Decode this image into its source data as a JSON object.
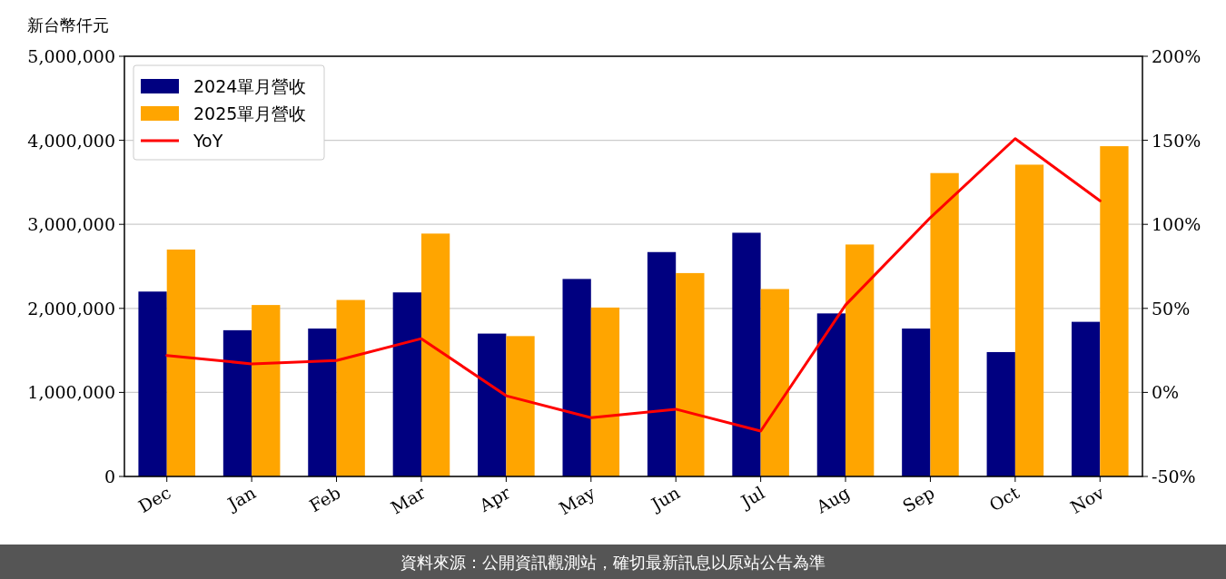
{
  "chart_data": {
    "type": "bar",
    "ylabel": "新台幣仟元",
    "categories": [
      "Dec",
      "Jan",
      "Feb",
      "Mar",
      "Apr",
      "May",
      "Jun",
      "Jul",
      "Aug",
      "Sep",
      "Oct",
      "Nov"
    ],
    "series": [
      {
        "name": "2024單月營收",
        "color": "#000080",
        "values": [
          2200000,
          1740000,
          1760000,
          2190000,
          1700000,
          2350000,
          2670000,
          2900000,
          1940000,
          1760000,
          1480000,
          1840000
        ]
      },
      {
        "name": "2025單月營收",
        "color": "#ffa500",
        "values": [
          2700000,
          2040000,
          2100000,
          2890000,
          1670000,
          2010000,
          2420000,
          2230000,
          2760000,
          3610000,
          3710000,
          3930000
        ]
      },
      {
        "name": "YoY",
        "type": "line",
        "axis": "y2",
        "color": "#ff0000",
        "values": [
          22,
          17,
          19,
          32,
          -2,
          -15,
          -10,
          -23,
          52,
          104,
          151,
          114
        ]
      }
    ],
    "ylim": [
      0,
      5000000
    ],
    "yticks": [
      0,
      {
        "value": 1000000,
        "label": "1,000,000"
      },
      {
        "value": 2000000,
        "label": "2,000,000"
      },
      {
        "value": 3000000,
        "label": "3,000,000"
      },
      {
        "value": 4000000,
        "label": "4,000,000"
      },
      {
        "value": 5000000,
        "label": "5,000,000"
      }
    ],
    "y2lim": [
      -50,
      200
    ],
    "y2ticks": [
      {
        "value": -50,
        "label": "-50%"
      },
      {
        "value": 0,
        "label": "0%"
      },
      {
        "value": 50,
        "label": "50%"
      },
      {
        "value": 100,
        "label": "100%"
      },
      {
        "value": 150,
        "label": "150%"
      },
      {
        "value": 200,
        "label": "200%"
      }
    ],
    "grid": "y",
    "legend": "top left",
    "annotations": [
      "資料來源：公開資訊觀測站，確切最新訊息以原站公告為準"
    ]
  }
}
